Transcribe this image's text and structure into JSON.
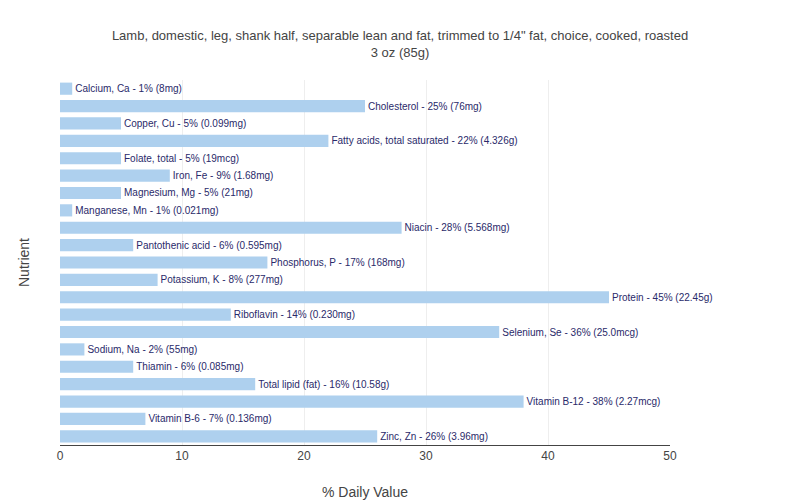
{
  "chart_data": {
    "type": "bar",
    "orientation": "horizontal",
    "title": "Lamb, domestic, leg, shank half, separable lean and fat, trimmed to 1/4\" fat, choice, cooked, roasted\n3 oz (85g)",
    "xlabel": "% Daily Value",
    "ylabel": "Nutrient",
    "categories": [
      "Calcium, Ca - 1% (8mg)",
      "Cholesterol - 25% (76mg)",
      "Copper, Cu - 5% (0.099mg)",
      "Fatty acids, total saturated - 22% (4.326g)",
      "Folate, total - 5% (19mcg)",
      "Iron, Fe - 9% (1.68mg)",
      "Magnesium, Mg - 5% (21mg)",
      "Manganese, Mn - 1% (0.021mg)",
      "Niacin - 28% (5.568mg)",
      "Pantothenic acid - 6% (0.595mg)",
      "Phosphorus, P - 17% (168mg)",
      "Potassium, K - 8% (277mg)",
      "Protein - 45% (22.45g)",
      "Riboflavin - 14% (0.230mg)",
      "Selenium, Se - 36% (25.0mcg)",
      "Sodium, Na - 2% (55mg)",
      "Thiamin - 6% (0.085mg)",
      "Total lipid (fat) - 16% (10.58g)",
      "Vitamin B-12 - 38% (2.27mcg)",
      "Vitamin B-6 - 7% (0.136mg)",
      "Zinc, Zn - 26% (3.96mg)"
    ],
    "values": [
      1,
      25,
      5,
      22,
      5,
      9,
      5,
      1,
      28,
      6,
      17,
      8,
      45,
      14,
      36,
      2,
      6,
      16,
      38,
      7,
      26
    ],
    "color": "#aed0ee",
    "xlim": [
      0,
      50
    ],
    "xticks": [
      0,
      10,
      20,
      30,
      40,
      50
    ],
    "grid": true,
    "tick_labels": "x"
  }
}
